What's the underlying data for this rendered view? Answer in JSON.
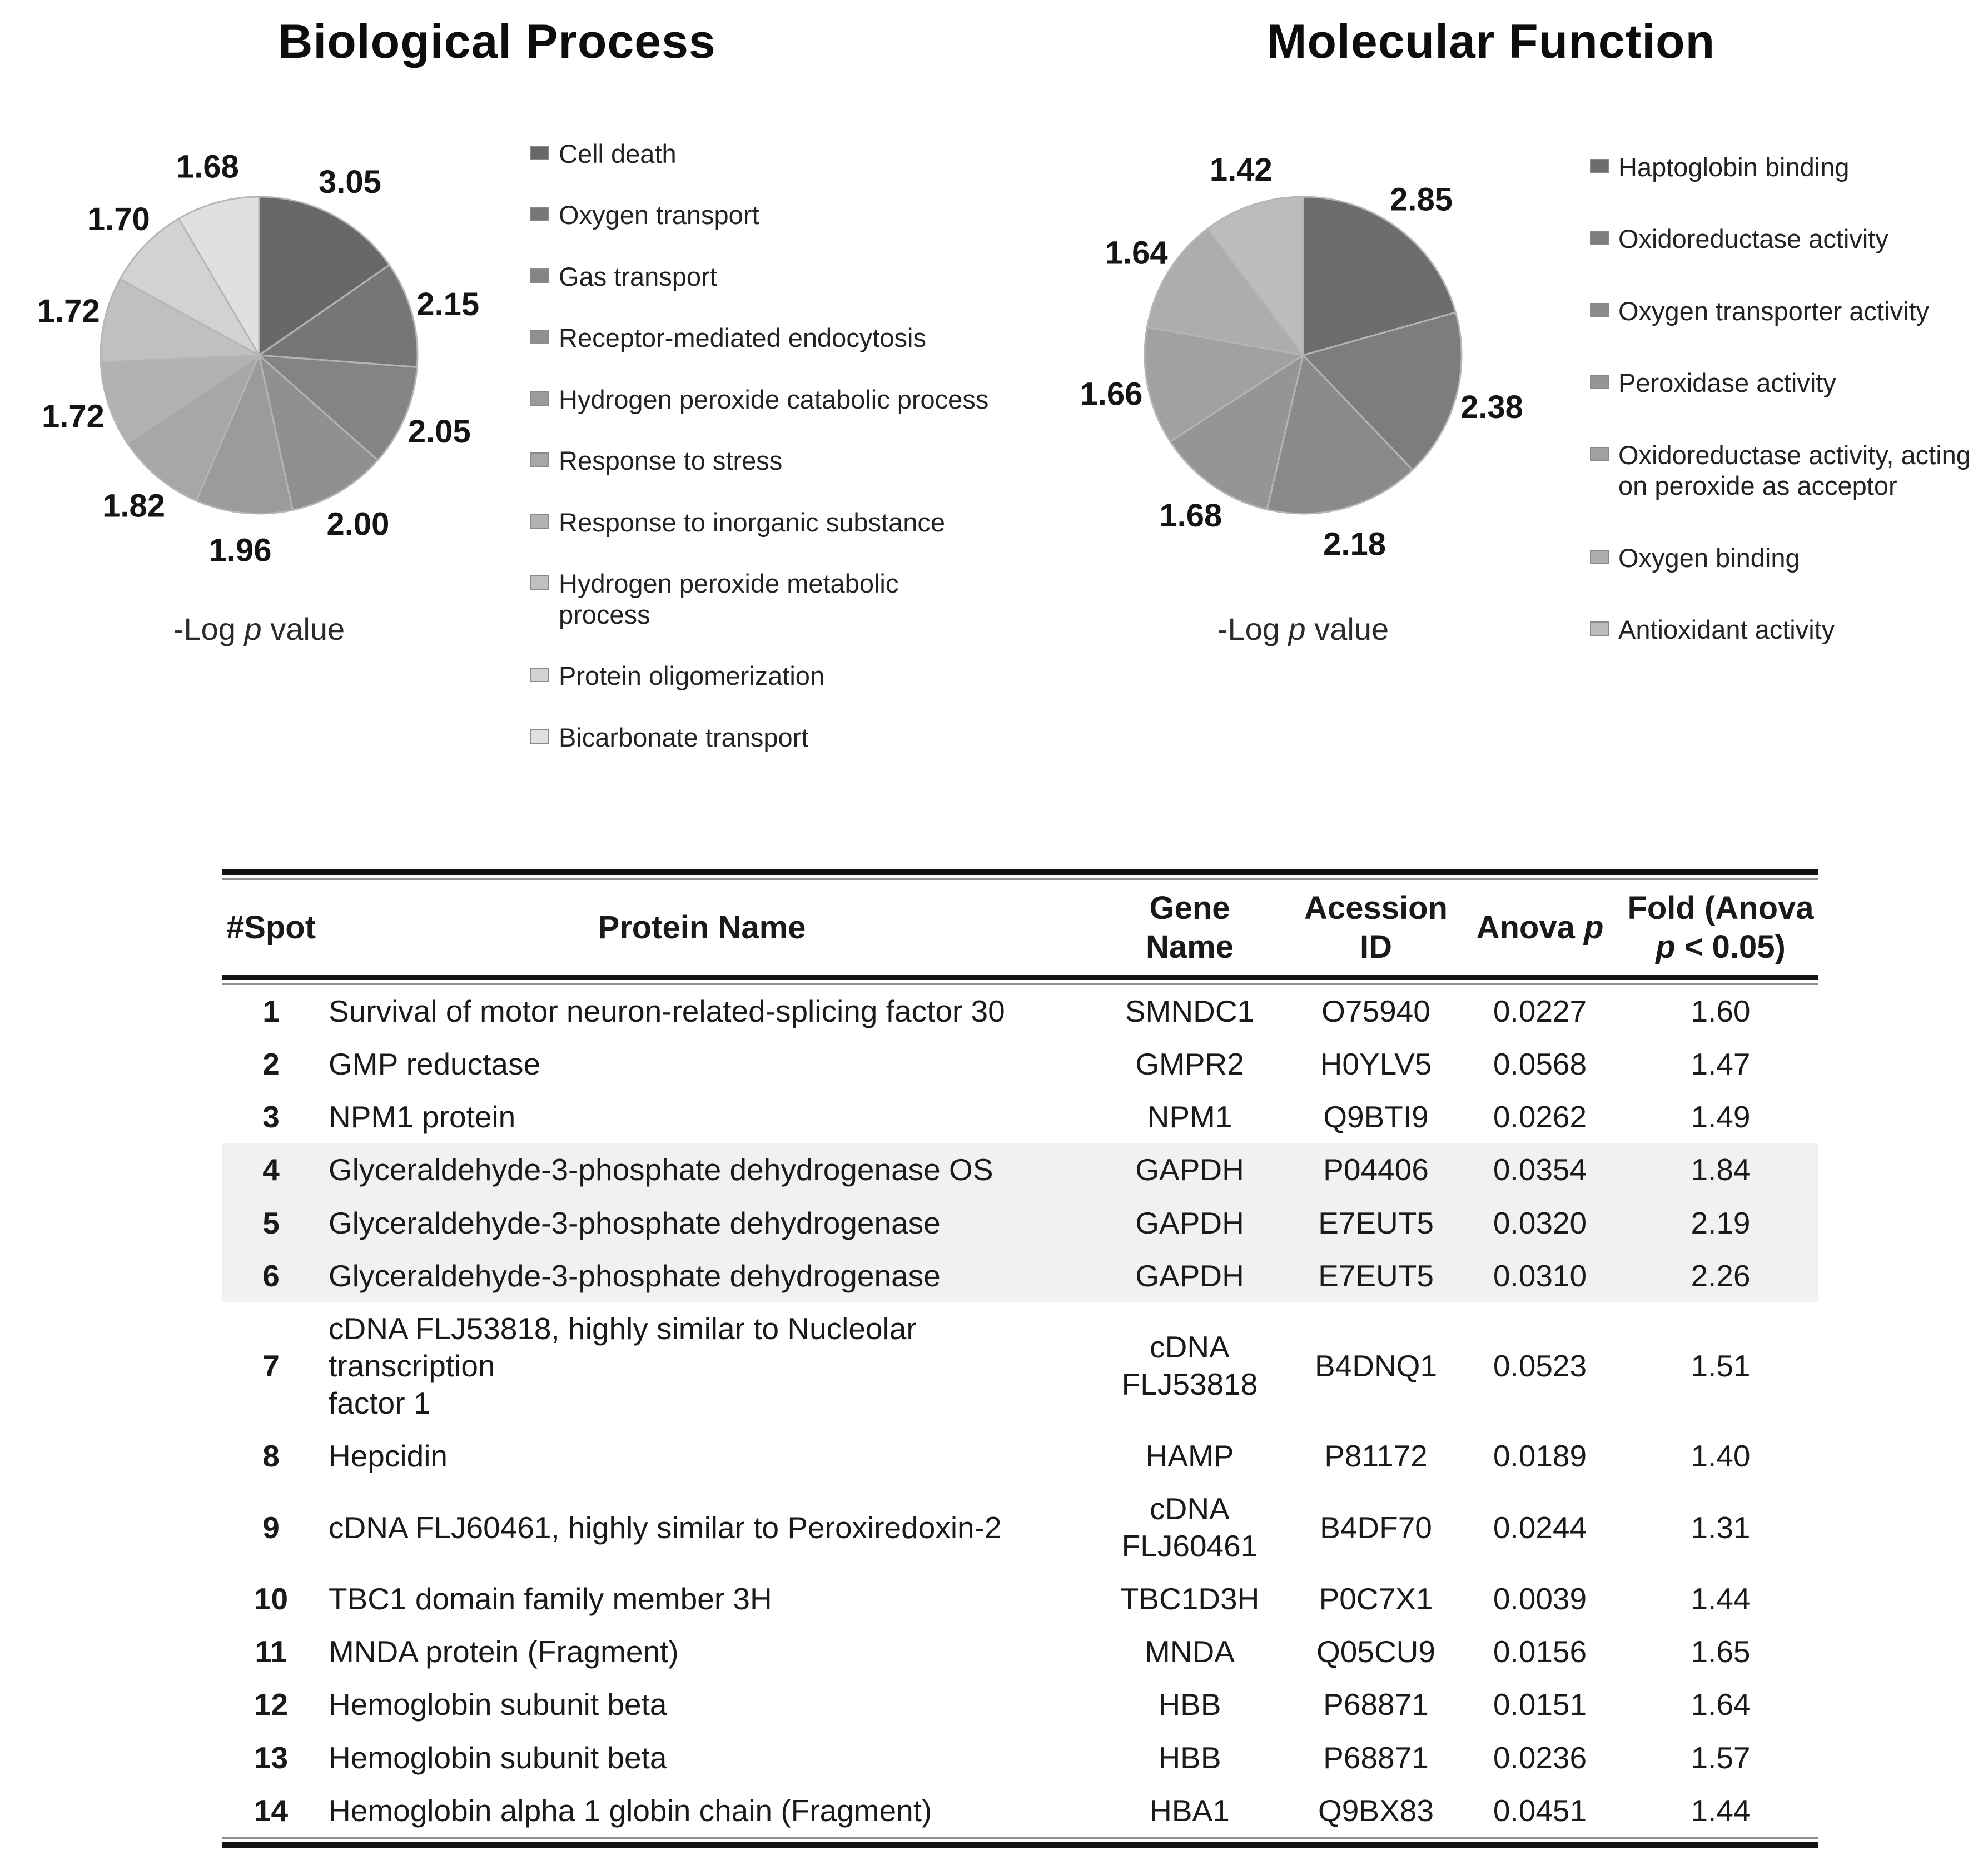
{
  "chart_data": [
    {
      "type": "pie",
      "title": "Biological Process",
      "caption": "-Log p value",
      "caption_parts": {
        "prefix": "-Log ",
        "italic": "p",
        "suffix": " value"
      },
      "legend_position": "right",
      "start_angle_deg": 0,
      "direction": "clockwise",
      "labels": [
        "Cell death",
        "Oxygen transport",
        "Gas transport",
        "Receptor-mediated endocytosis",
        "Hydrogen peroxide catabolic process",
        "Response to stress",
        "Response to inorganic substance",
        "Hydrogen peroxide metabolic process",
        "Protein oligomerization",
        "Bicarbonate transport"
      ],
      "values": [
        3.05,
        2.15,
        2.05,
        2.0,
        1.96,
        1.82,
        1.72,
        1.72,
        1.7,
        1.68
      ],
      "colors": [
        "#686868",
        "#767676",
        "#848484",
        "#909090",
        "#9b9b9b",
        "#a7a7a7",
        "#b2b2b2",
        "#c0c0c0",
        "#d2d2d2",
        "#e0e0e0"
      ]
    },
    {
      "type": "pie",
      "title": "Molecular Function",
      "caption": "-Log p value",
      "caption_parts": {
        "prefix": "-Log ",
        "italic": "p",
        "suffix": " value"
      },
      "legend_position": "right",
      "start_angle_deg": 0,
      "direction": "clockwise",
      "labels": [
        "Haptoglobin binding",
        "Oxidoreductase activity",
        "Oxygen transporter activity",
        "Peroxidase activity",
        "Oxidoreductase activity, acting on peroxide as acceptor",
        "Oxygen binding",
        "Antioxidant activity"
      ],
      "values": [
        2.85,
        2.38,
        2.18,
        1.68,
        1.66,
        1.64,
        1.42
      ],
      "colors": [
        "#6d6d6d",
        "#7d7d7d",
        "#8a8a8a",
        "#959595",
        "#a1a1a1",
        "#adadad",
        "#bcbcbc"
      ]
    },
    {
      "type": "table",
      "columns": [
        "#Spot",
        "Protein Name",
        "Gene Name",
        "Acession ID",
        "Anova p",
        "Fold (Anova p < 0.05)"
      ],
      "rows": [
        {
          "spot": "1",
          "protein": "Survival of motor neuron-related-splicing factor 30",
          "gene": "SMNDC1",
          "accession": "O75940",
          "anova": "0.0227",
          "fold": "1.60",
          "highlight": false
        },
        {
          "spot": "2",
          "protein": "GMP reductase",
          "gene": "GMPR2",
          "accession": "H0YLV5",
          "anova": "0.0568",
          "fold": "1.47",
          "highlight": false
        },
        {
          "spot": "3",
          "protein": "NPM1 protein",
          "gene": "NPM1",
          "accession": "Q9BTI9",
          "anova": "0.0262",
          "fold": "1.49",
          "highlight": false
        },
        {
          "spot": "4",
          "protein": "Glyceraldehyde-3-phosphate dehydrogenase OS",
          "gene": "GAPDH",
          "accession": "P04406",
          "anova": "0.0354",
          "fold": "1.84",
          "highlight": true
        },
        {
          "spot": "5",
          "protein": "Glyceraldehyde-3-phosphate dehydrogenase",
          "gene": "GAPDH",
          "accession": "E7EUT5",
          "anova": "0.0320",
          "fold": "2.19",
          "highlight": true
        },
        {
          "spot": "6",
          "protein": "Glyceraldehyde-3-phosphate dehydrogenase",
          "gene": "GAPDH",
          "accession": "E7EUT5",
          "anova": "0.0310",
          "fold": "2.26",
          "highlight": true
        },
        {
          "spot": "7",
          "protein": "cDNA FLJ53818, highly similar to Nucleolar transcription\nfactor 1",
          "gene": "cDNA\nFLJ53818",
          "accession": "B4DNQ1",
          "anova": "0.0523",
          "fold": "1.51",
          "highlight": false
        },
        {
          "spot": "8",
          "protein": "Hepcidin",
          "gene": "HAMP",
          "accession": "P81172",
          "anova": "0.0189",
          "fold": "1.40",
          "highlight": false
        },
        {
          "spot": "9",
          "protein": "cDNA FLJ60461, highly similar to Peroxiredoxin-2",
          "gene": "cDNA\nFLJ60461",
          "accession": "B4DF70",
          "anova": "0.0244",
          "fold": "1.31",
          "highlight": false
        },
        {
          "spot": "10",
          "protein": "TBC1 domain family member 3H",
          "gene": "TBC1D3H",
          "accession": "P0C7X1",
          "anova": "0.0039",
          "fold": "1.44",
          "highlight": false
        },
        {
          "spot": "11",
          "protein": "MNDA protein (Fragment)",
          "gene": "MNDA",
          "accession": "Q05CU9",
          "anova": "0.0156",
          "fold": "1.65",
          "highlight": false
        },
        {
          "spot": "12",
          "protein": "Hemoglobin subunit beta",
          "gene": "HBB",
          "accession": "P68871",
          "anova": "0.0151",
          "fold": "1.64",
          "highlight": false
        },
        {
          "spot": "13",
          "protein": "Hemoglobin subunit beta",
          "gene": "HBB",
          "accession": "P68871",
          "anova": "0.0236",
          "fold": "1.57",
          "highlight": false
        },
        {
          "spot": "14",
          "protein": "Hemoglobin alpha 1 globin chain (Fragment)",
          "gene": "HBA1",
          "accession": "Q9BX83",
          "anova": "0.0451",
          "fold": "1.44",
          "highlight": false
        }
      ]
    }
  ],
  "table_header": {
    "spot": "#Spot",
    "protein": "Protein Name",
    "gene_line1": "Gene",
    "gene_line2": "Name",
    "accession_line1": "Acession",
    "accession_line2": "ID",
    "anova_prefix": "Anova ",
    "anova_italic": "p",
    "fold_line1": "Fold (Anova",
    "fold_italic": "p",
    "fold_line2": " < 0.05)"
  },
  "style_colors": {
    "highlight_row": "#f1f1f1",
    "rule_dark": "#131313",
    "rule_gray": "#8f8f8f",
    "slice_stroke": "#b5b5b5"
  }
}
